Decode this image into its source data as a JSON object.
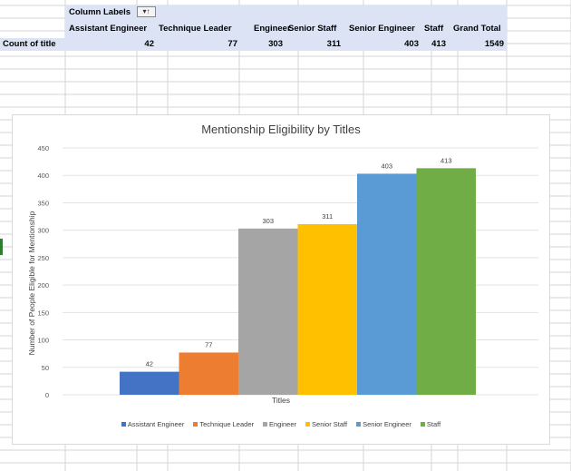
{
  "pivot": {
    "column_labels": "Column Labels",
    "row_label": "Count of title",
    "filter_icon": "filter-dropdown-icon",
    "headers": [
      "Assistant Engineer",
      "Technique Leader",
      "Engineer",
      "Senior Staff",
      "Senior Engineer",
      "Staff",
      "Grand Total"
    ],
    "values": [
      "42",
      "77",
      "303",
      "311",
      "403",
      "413",
      "1549"
    ]
  },
  "chart_data": {
    "type": "bar",
    "title": "Mentionship Eligibility by Titles",
    "xlabel": "Titles",
    "ylabel": "Number of People Eligible for Mentionship",
    "ylim": [
      0,
      450
    ],
    "yticks": [
      0,
      50,
      100,
      150,
      200,
      250,
      300,
      350,
      400,
      450
    ],
    "grid": true,
    "legend_position": "bottom",
    "series": [
      {
        "name": "Assistant Engineer",
        "value": 42,
        "color": "#4472c4"
      },
      {
        "name": "Technique Leader",
        "value": 77,
        "color": "#ed7d31"
      },
      {
        "name": "Engineer",
        "value": 303,
        "color": "#a5a5a5"
      },
      {
        "name": "Senior Staff",
        "value": 311,
        "color": "#ffc000"
      },
      {
        "name": "Senior Engineer",
        "value": 403,
        "color": "#5b9bd5"
      },
      {
        "name": "Staff",
        "value": 413,
        "color": "#70ad47"
      }
    ]
  }
}
